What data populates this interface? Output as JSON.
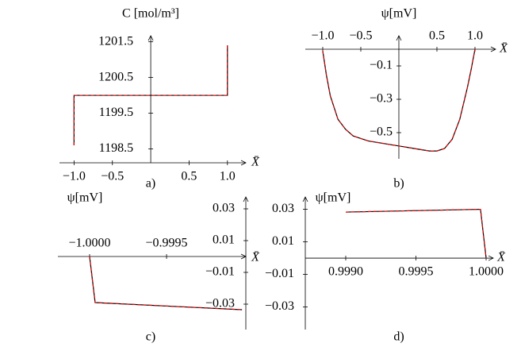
{
  "chart_data": [
    {
      "type": "line",
      "panel": "a)",
      "y_label": "C [mol/m³]",
      "x_label": "X̄",
      "x": [
        -1.0,
        -1.0,
        1.0,
        1.0
      ],
      "series": [
        {
          "color": "#e00000",
          "values": [
            1198.6,
            1200.0,
            1200.0,
            1201.4
          ]
        }
      ],
      "xlim": [
        -1.19,
        1.24
      ],
      "ylim": [
        1198.11,
        1201.67
      ],
      "xticks": [
        {
          "value": -1,
          "label": "−1.0"
        },
        {
          "value": -0.5,
          "label": "−0.5"
        },
        0.5,
        {
          "value": 1,
          "label": "1.0"
        }
      ],
      "yticks": [
        1198.5,
        1199.5,
        1200.5,
        1201.5
      ]
    },
    {
      "type": "line",
      "panel": "b)",
      "y_label": "ψ[mV]",
      "x_label": "X̄",
      "x": [
        -1.0,
        -0.95,
        -0.9,
        -0.8,
        -0.7,
        -0.6,
        -0.4,
        -0.2,
        0.0,
        0.2,
        0.4,
        0.5,
        0.6,
        0.7,
        0.8,
        0.9,
        0.95,
        1.0
      ],
      "series": [
        {
          "color": "#e00000",
          "values": [
            -0.01,
            -0.16,
            -0.28,
            -0.42,
            -0.48,
            -0.52,
            -0.55,
            -0.565,
            -0.58,
            -0.595,
            -0.61,
            -0.61,
            -0.595,
            -0.54,
            -0.42,
            -0.23,
            -0.12,
            0.0
          ]
        }
      ],
      "xlim": [
        -1.229,
        1.271
      ],
      "ylim": [
        -0.657,
        0.081
      ],
      "xticks": [
        {
          "value": -1,
          "label": "−1.0"
        },
        {
          "value": -0.5,
          "label": "−0.5"
        },
        0.5,
        {
          "value": 1,
          "label": "1.0"
        }
      ],
      "yticks": [
        {
          "value": -0.5,
          "label": "−0.5"
        },
        {
          "value": -0.3,
          "label": "−0.3"
        },
        {
          "value": -0.1,
          "label": "−0.1"
        }
      ]
    },
    {
      "type": "line",
      "panel": "c)",
      "y_label": "ψ[mV]",
      "x_label": "X̄",
      "x": [
        -1.0,
        -0.999964,
        -0.99901
      ],
      "series": [
        {
          "color": "#e00000",
          "values": [
            0.0,
            -0.029,
            -0.0335
          ]
        }
      ],
      "xlim": [
        -1.000206,
        -0.998985
      ],
      "ylim": [
        -0.046,
        0.0375
      ],
      "xticks": [
        {
          "value": -1,
          "label": "−1.0000"
        },
        {
          "value": -0.9995,
          "label": "−0.9995"
        }
      ],
      "yticks": [
        {
          "value": -0.03,
          "label": "−0.03"
        },
        {
          "value": -0.01,
          "label": "−0.01"
        },
        0.01,
        0.03
      ]
    },
    {
      "type": "line",
      "panel": "d)",
      "y_label": "ψ[mV]",
      "x_label": "X̄",
      "x": [
        0.999,
        0.99996,
        1.0
      ],
      "series": [
        {
          "color": "#e00000",
          "values": [
            0.0283,
            0.03,
            0.0
          ]
        }
      ],
      "xlim": [
        0.998712,
        1.0000508
      ],
      "ylim": [
        -0.0439,
        0.0376
      ],
      "xticks": [
        {
          "value": 0.999,
          "label": "0.9990"
        },
        0.9995,
        {
          "value": 1,
          "label": "1.0000"
        }
      ],
      "yticks": [
        {
          "value": -0.03,
          "label": "−0.03"
        },
        {
          "value": -0.01,
          "label": "−0.01"
        },
        0.01,
        0.03
      ]
    }
  ]
}
